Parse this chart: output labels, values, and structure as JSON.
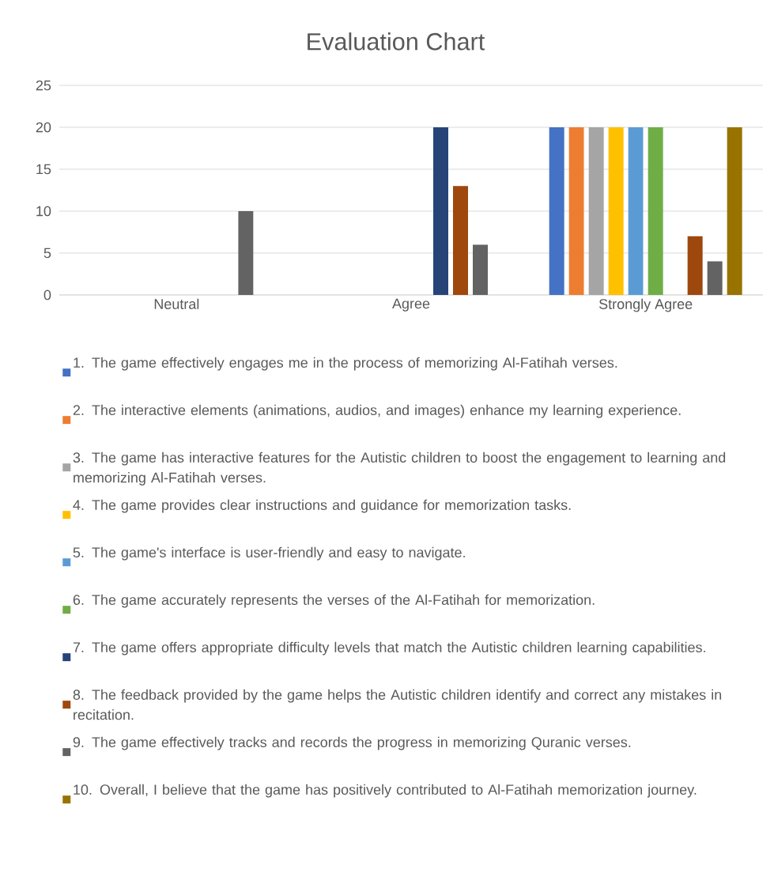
{
  "chart_data": {
    "type": "bar",
    "title": "Evaluation Chart",
    "categories": [
      "Neutral",
      "Agree",
      "Strongly Agree"
    ],
    "series": [
      {
        "name": "1. The game effectively engages me in the process of memorizing  Al-Fatihah verses.",
        "color": "#4472c4",
        "values": [
          0,
          0,
          20
        ]
      },
      {
        "name": "2. The interactive elements (animations, audios, and images) enhance my learning experience.",
        "color": "#ed7d31",
        "values": [
          0,
          0,
          20
        ]
      },
      {
        "name": "3.  The game has interactive features for the Autistic children to boost the engagement to learning and memorizing Al-Fatihah verses.",
        "color": "#a5a5a5",
        "values": [
          0,
          0,
          20
        ]
      },
      {
        "name": "4.  The game provides clear instructions and guidance for memorization tasks.",
        "color": "#ffc000",
        "values": [
          0,
          0,
          20
        ]
      },
      {
        "name": "5.  The game's interface is user-friendly and easy to navigate.",
        "color": "#5b9bd5",
        "values": [
          0,
          0,
          20
        ]
      },
      {
        "name": "6.  The game accurately represents the verses of the Al-Fatihah for memorization.",
        "color": "#70ad47",
        "values": [
          0,
          0,
          20
        ]
      },
      {
        "name": "7.  The game offers appropriate difficulty levels that match the Autistic children learning capabilities.",
        "color": "#264478",
        "values": [
          0,
          20,
          0
        ]
      },
      {
        "name": "8.  The feedback provided by the game helps the Autistic children identify and correct any mistakes in recitation.",
        "color": "#9e480e",
        "values": [
          0,
          13,
          7
        ]
      },
      {
        "name": "9.  The game effectively tracks and records the progress in memorizing Quranic verses.",
        "color": "#636363",
        "values": [
          10,
          6,
          4
        ]
      },
      {
        "name": "10.  Overall, I believe that the game has positively contributed to Al-Fatihah memorization journey.",
        "color": "#997300",
        "values": [
          0,
          0,
          20
        ]
      }
    ],
    "ylim": [
      0,
      25
    ],
    "yticks": [
      0,
      5,
      10,
      15,
      20,
      25
    ],
    "grid": "y",
    "legend": "bottom"
  }
}
